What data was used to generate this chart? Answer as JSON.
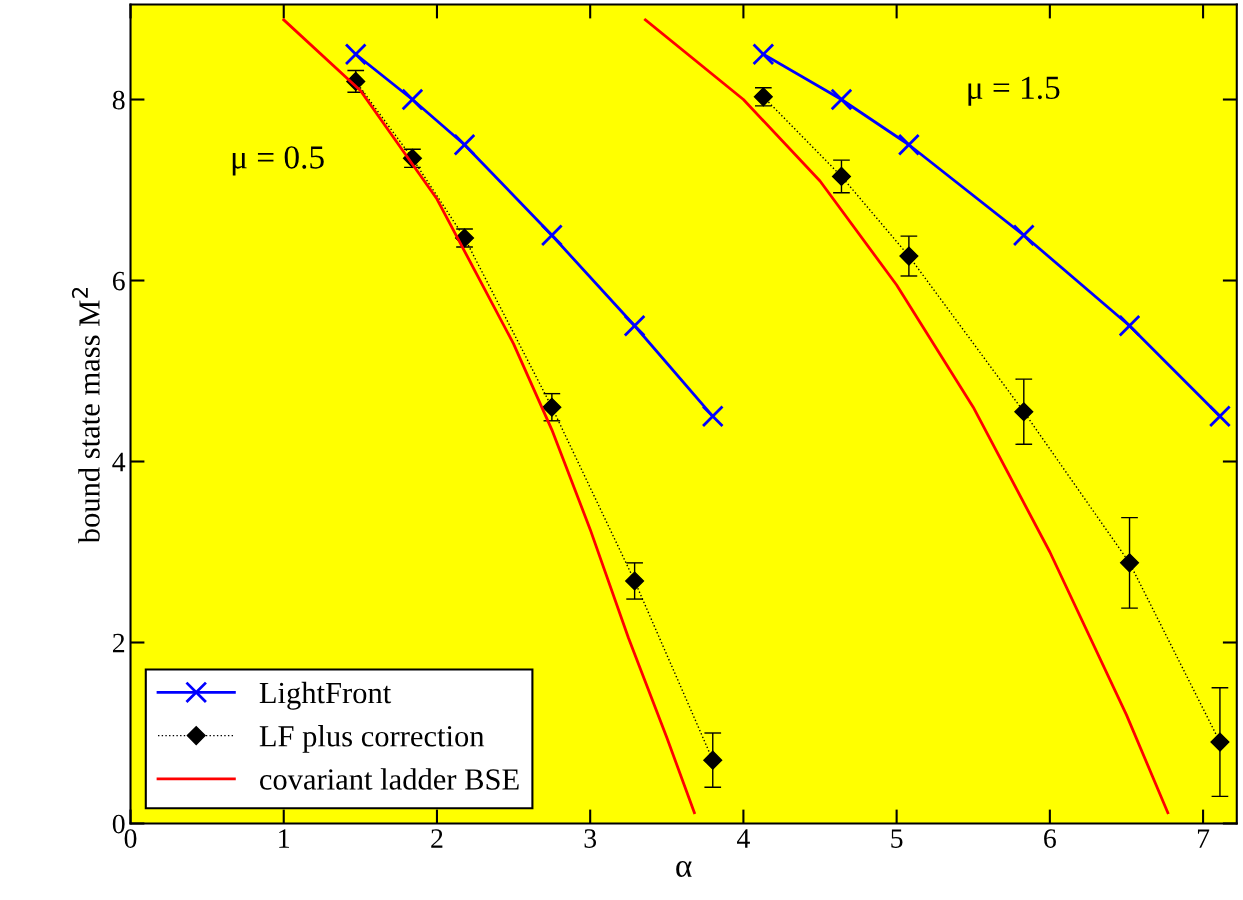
{
  "chart_data": {
    "type": "line",
    "xlabel": "α",
    "ylabel": "bound state mass M$^{2}$",
    "xlim": [
      0,
      7.22
    ],
    "ylim": [
      0,
      9.05
    ],
    "xticks": [
      0,
      1,
      2,
      3,
      4,
      5,
      6,
      7
    ],
    "yticks": [
      0,
      2,
      4,
      6,
      8
    ],
    "grid": false,
    "legend": "bottom left",
    "series": [
      {
        "name": "LightFront",
        "color": "#0000ff",
        "marker": "cross",
        "line_style": "solid",
        "x": [
          1.47,
          1.84,
          2.18,
          2.75,
          3.29,
          3.8
        ],
        "values": [
          8.5,
          8.0,
          7.5,
          6.5,
          5.5,
          4.5
        ]
      },
      {
        "name": "LF plus correction",
        "color": "#000000",
        "marker": "diamond",
        "line_style": "dotted",
        "x": [
          1.47,
          1.84,
          2.18,
          2.75,
          3.29,
          3.8
        ],
        "values": [
          8.2,
          7.35,
          6.47,
          4.6,
          2.68,
          0.7
        ],
        "errors": [
          0.12,
          0.1,
          0.1,
          0.15,
          0.2,
          0.3
        ]
      },
      {
        "name": "covariant ladder BSE",
        "color": "#ff0000",
        "marker": "none",
        "line_style": "solid",
        "x": [
          1.0,
          1.5,
          2.0,
          2.5,
          2.75,
          3.0,
          3.25,
          3.5,
          3.68
        ],
        "values": [
          8.88,
          8.1,
          6.9,
          5.3,
          4.35,
          3.25,
          2.05,
          0.95,
          0.12
        ]
      },
      {
        "color": "#0000ff",
        "marker": "cross",
        "line_style": "solid",
        "x": [
          4.13,
          4.64,
          5.08,
          5.83,
          6.52,
          7.11
        ],
        "values": [
          8.5,
          8.0,
          7.5,
          6.5,
          5.5,
          4.5
        ]
      },
      {
        "color": "#000000",
        "marker": "diamond",
        "line_style": "dotted",
        "x": [
          4.13,
          4.64,
          5.08,
          5.83,
          6.52,
          7.11
        ],
        "values": [
          8.03,
          7.15,
          6.27,
          4.55,
          2.88,
          0.9
        ],
        "errors": [
          0.1,
          0.18,
          0.22,
          0.36,
          0.5,
          0.6
        ]
      },
      {
        "color": "#ff0000",
        "marker": "none",
        "line_style": "solid",
        "x": [
          3.36,
          4.0,
          4.5,
          5.0,
          5.5,
          6.0,
          6.5,
          6.77
        ],
        "values": [
          8.88,
          8.0,
          7.1,
          5.95,
          4.6,
          3.0,
          1.2,
          0.12
        ]
      }
    ],
    "annotations": [
      "μ = 0.5",
      "μ = 1.5"
    ]
  }
}
